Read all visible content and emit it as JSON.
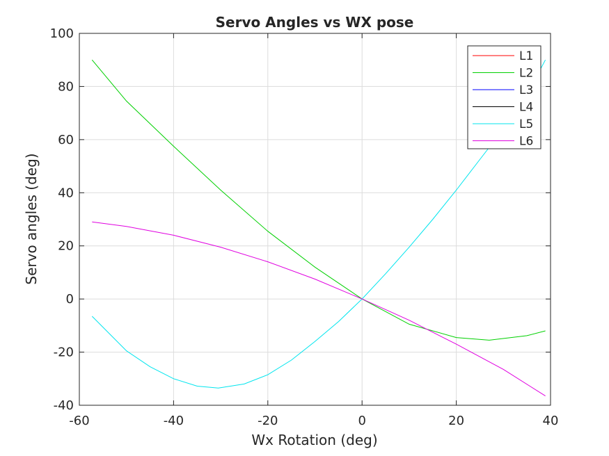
{
  "chart_data": {
    "type": "line",
    "title": "Servo Angles vs WX pose",
    "xlabel": "Wx Rotation (deg)",
    "ylabel": "Servo angles (deg)",
    "xlim": [
      -60,
      40
    ],
    "ylim": [
      -40,
      100
    ],
    "xticks": [
      -60,
      -40,
      -20,
      0,
      20,
      40
    ],
    "yticks": [
      -40,
      -20,
      0,
      20,
      40,
      60,
      80,
      100
    ],
    "xtick_labels": [
      "-60",
      "-40",
      "-20",
      "0",
      "20",
      "40"
    ],
    "ytick_labels": [
      "-40",
      "-20",
      "0",
      "20",
      "40",
      "60",
      "80",
      "100"
    ],
    "grid": true,
    "legend_position": "top-right",
    "series": [
      {
        "name": "L1",
        "color": "#ff0000",
        "x": [],
        "y": []
      },
      {
        "name": "L2",
        "color": "#00d000",
        "x": [
          -57.3,
          -50,
          -40,
          -30,
          -20,
          -10,
          0,
          10,
          20,
          27,
          35,
          38.9
        ],
        "y": [
          90,
          74.5,
          57.5,
          41,
          25.5,
          12,
          0,
          -9.5,
          -14.5,
          -15.5,
          -13.8,
          -12
        ]
      },
      {
        "name": "L3",
        "color": "#0000ff",
        "x": [],
        "y": []
      },
      {
        "name": "L4",
        "color": "#000000",
        "x": [],
        "y": []
      },
      {
        "name": "L5",
        "color": "#00e5ee",
        "x": [
          -57.3,
          -50,
          -45,
          -40,
          -35,
          -30.5,
          -25,
          -20,
          -15,
          -10,
          -5,
          0,
          5,
          10,
          15,
          20,
          25,
          30,
          35,
          38.9
        ],
        "y": [
          -6.5,
          -19.5,
          -25.5,
          -30,
          -32.8,
          -33.5,
          -32,
          -28.5,
          -23,
          -16,
          -8.5,
          0,
          9.5,
          19.5,
          30,
          41,
          52.5,
          64,
          77,
          90
        ]
      },
      {
        "name": "L6",
        "color": "#e000e0",
        "x": [
          -57.3,
          -50,
          -40,
          -30,
          -20,
          -10,
          0,
          10,
          20,
          30,
          38.9
        ],
        "y": [
          29,
          27.3,
          24,
          19.5,
          14,
          7.5,
          0,
          -8,
          -17,
          -26.5,
          -36.5
        ]
      }
    ]
  }
}
